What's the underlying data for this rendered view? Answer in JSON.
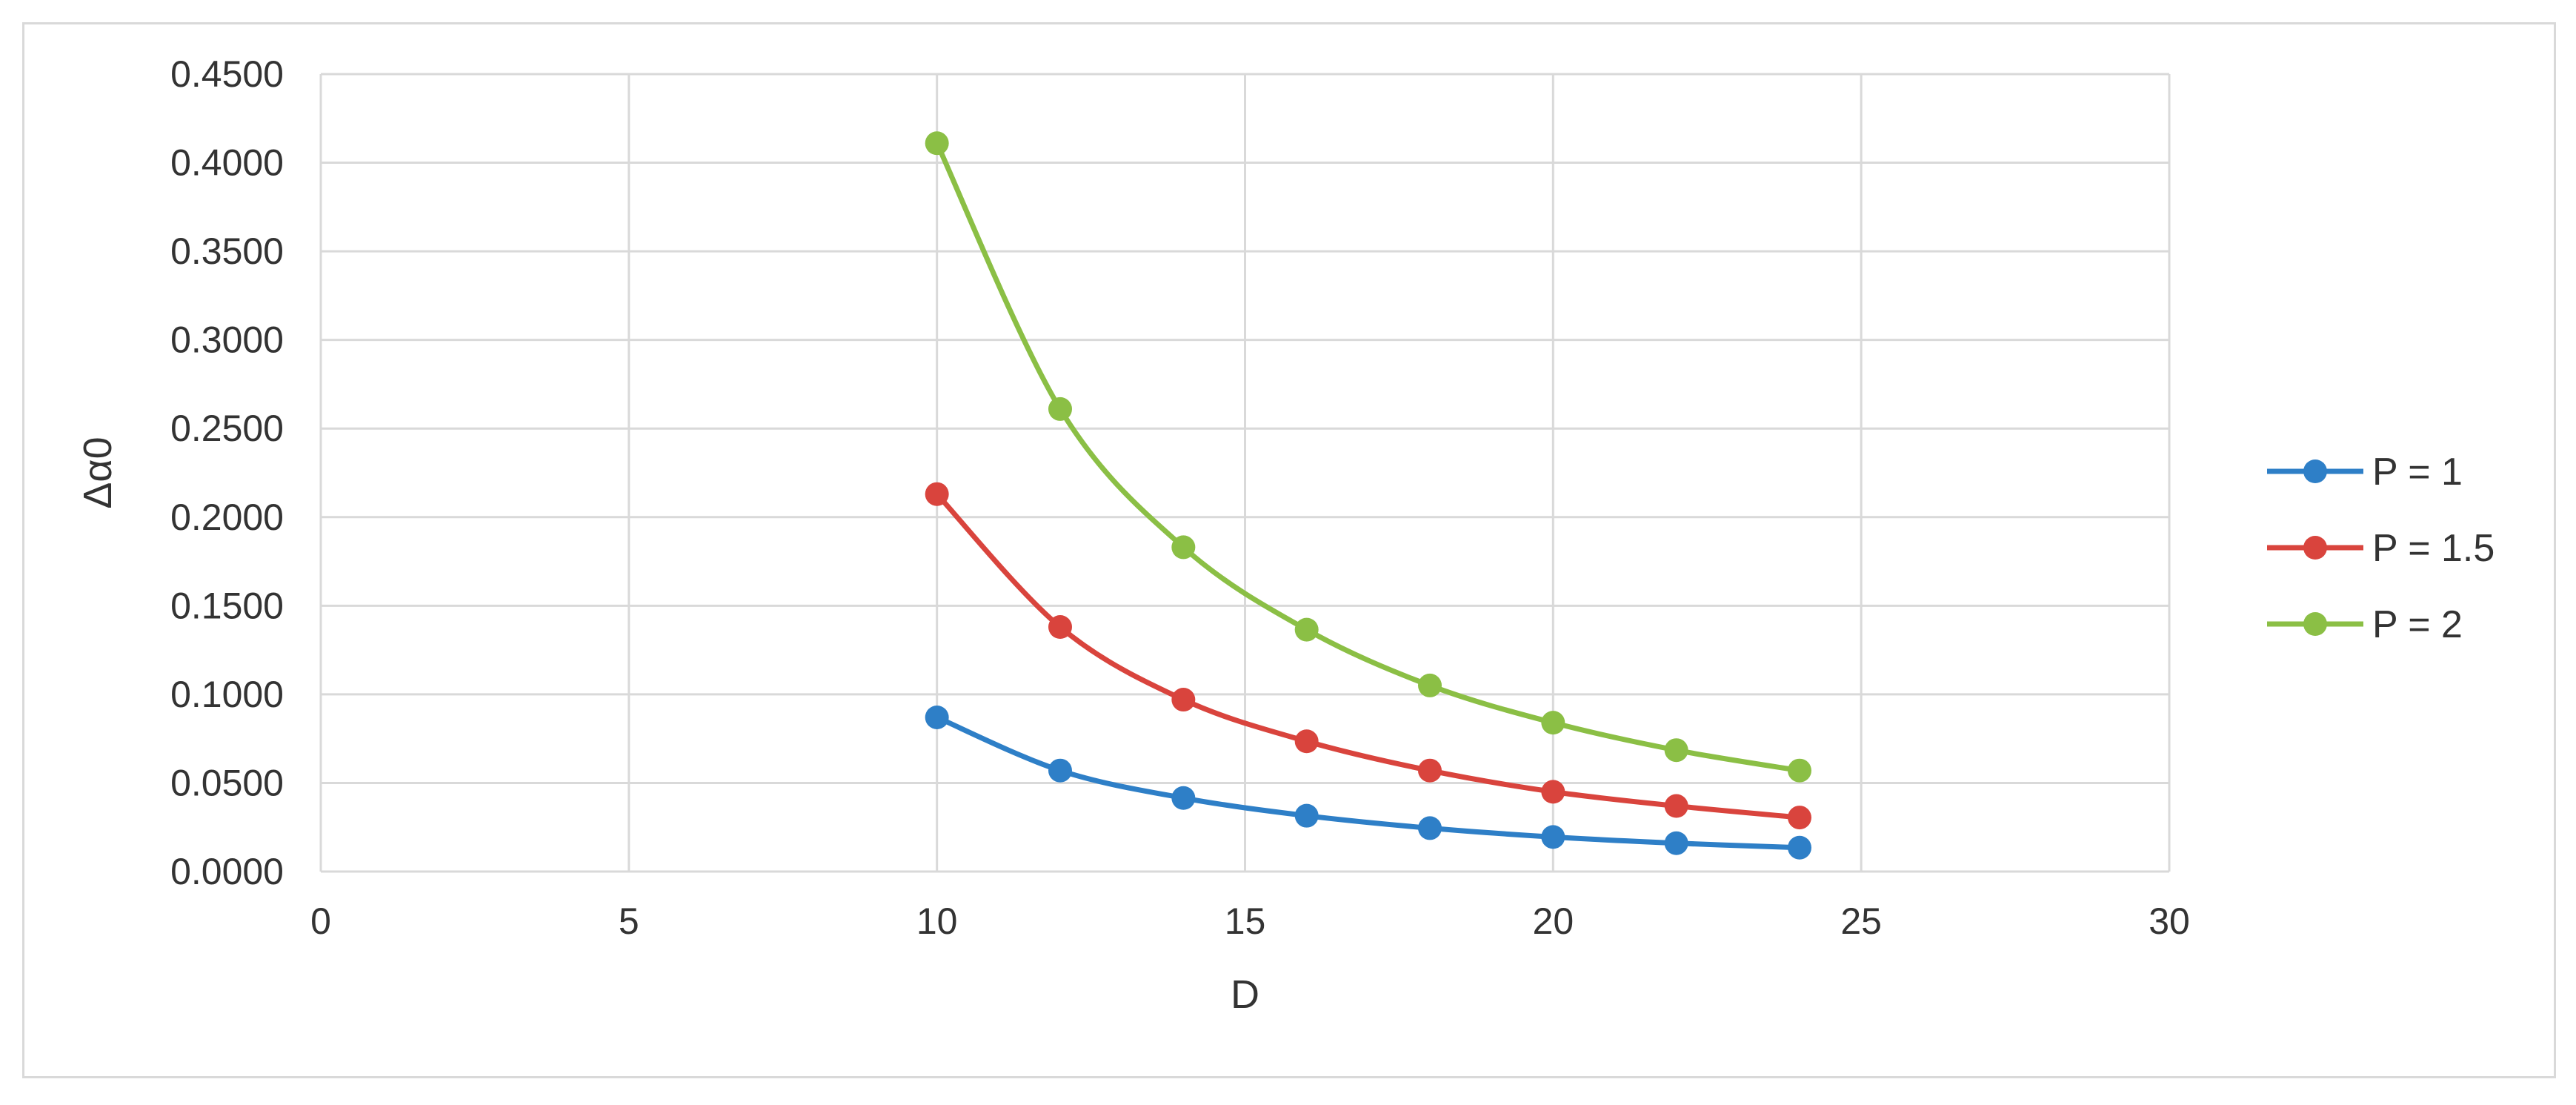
{
  "chart_data": {
    "type": "line",
    "xlabel": "D",
    "ylabel": "Δα0",
    "xlim": [
      0,
      30
    ],
    "ylim": [
      0,
      0.45
    ],
    "x_ticks": [
      0,
      5,
      10,
      15,
      20,
      25,
      30
    ],
    "y_ticks": [
      0.0,
      0.05,
      0.1,
      0.15,
      0.2,
      0.25,
      0.3,
      0.35,
      0.4,
      0.45
    ],
    "x_tick_labels": [
      "0",
      "5",
      "10",
      "15",
      "20",
      "25",
      "30"
    ],
    "y_tick_labels": [
      "0.0000",
      "0.0500",
      "0.1000",
      "0.1500",
      "0.2000",
      "0.2500",
      "0.3000",
      "0.3500",
      "0.4000",
      "0.4500"
    ],
    "grid": true,
    "legend_position": "right",
    "x": [
      10,
      12,
      14,
      16,
      18,
      20,
      22,
      24
    ],
    "series": [
      {
        "name": "P = 1",
        "color": "#2e7fc7",
        "values": [
          0.087,
          0.057,
          0.0415,
          0.0315,
          0.0245,
          0.0195,
          0.016,
          0.0135
        ]
      },
      {
        "name": "P = 1.5",
        "color": "#d9443d",
        "values": [
          0.213,
          0.138,
          0.097,
          0.0735,
          0.057,
          0.045,
          0.037,
          0.0305
        ]
      },
      {
        "name": "P = 2",
        "color": "#8bbf45",
        "values": [
          0.411,
          0.261,
          0.183,
          0.1365,
          0.105,
          0.084,
          0.0685,
          0.057
        ]
      }
    ]
  }
}
